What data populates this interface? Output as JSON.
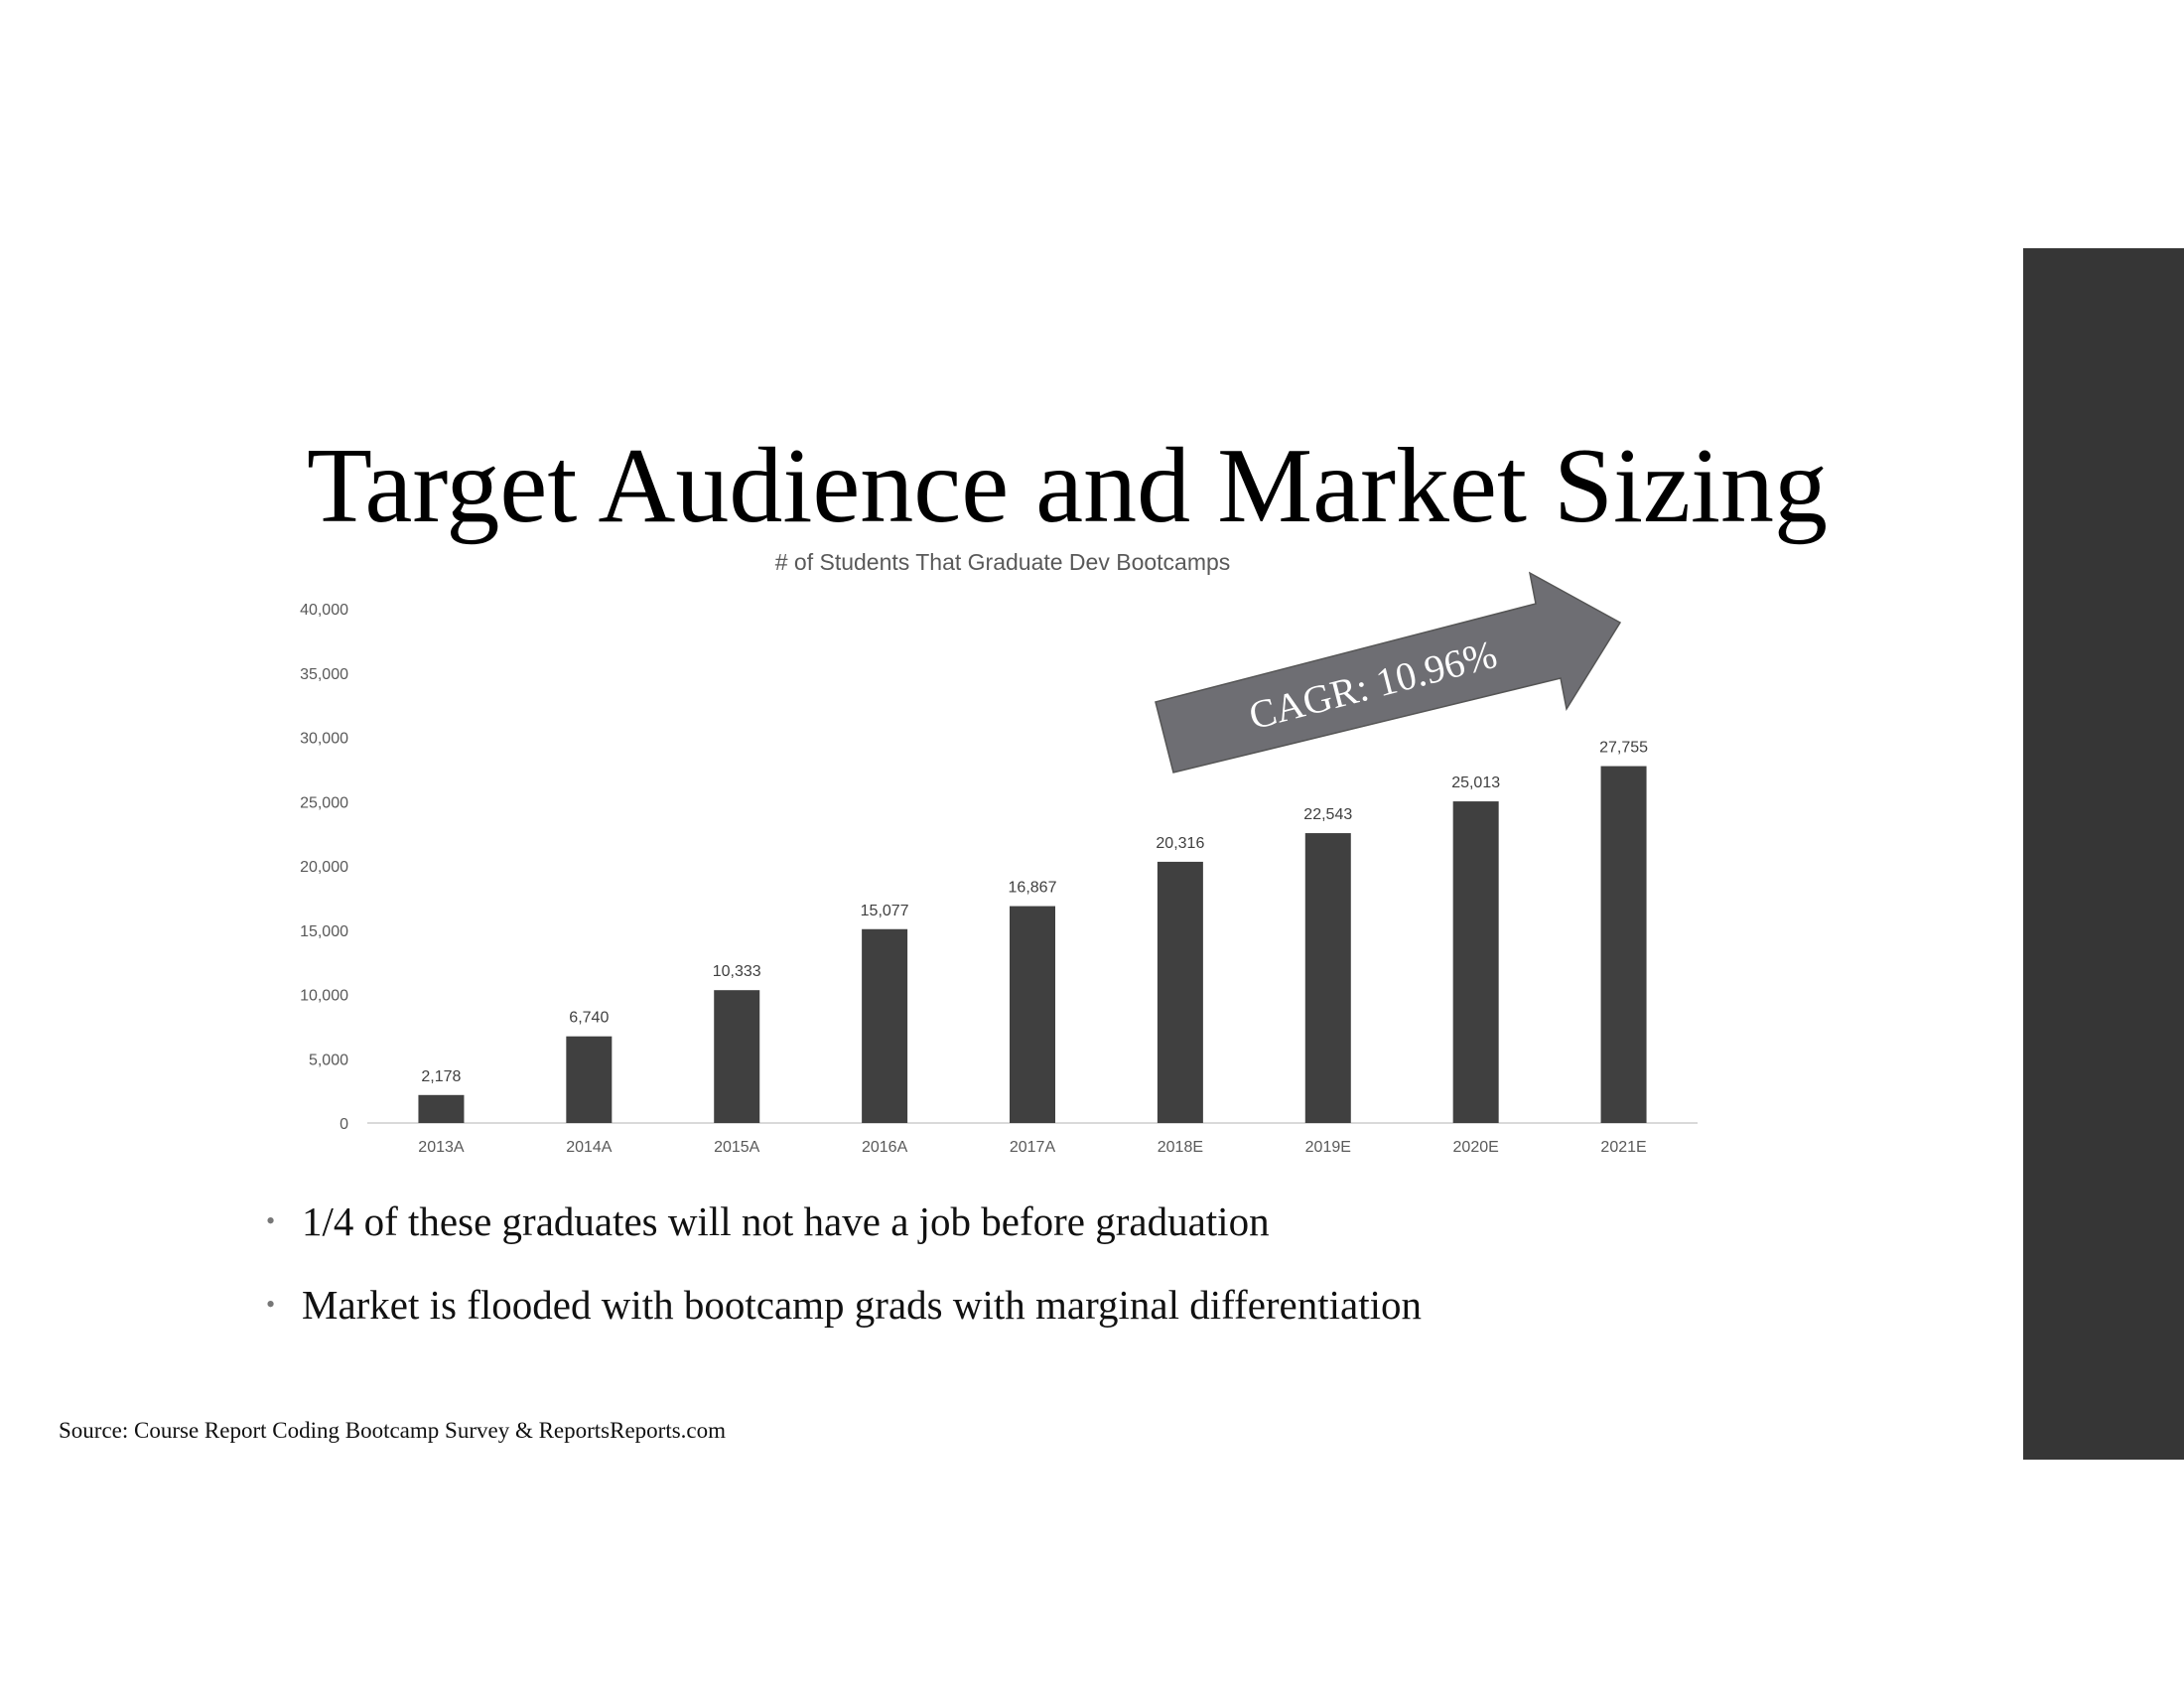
{
  "slide": {
    "title": "Target Audience and Market Sizing",
    "bullets": [
      "1/4 of these graduates will not have a job before graduation",
      "Market is flooded with bootcamp grads with marginal differentiation"
    ],
    "source": "Source: Course Report Coding Bootcamp Survey & ReportsReports.com"
  },
  "colors": {
    "bar": "#404040",
    "side_bar": "#363636",
    "arrow": "#6e6e73",
    "axis_text": "#595959"
  },
  "chart_data": {
    "type": "bar",
    "title": "# of Students That Graduate Dev Bootcamps",
    "categories": [
      "2013A",
      "2014A",
      "2015A",
      "2016A",
      "2017A",
      "2018E",
      "2019E",
      "2020E",
      "2021E"
    ],
    "values": [
      2178,
      6740,
      10333,
      15077,
      16867,
      20316,
      22543,
      25013,
      27755
    ],
    "value_labels": [
      "2,178",
      "6,740",
      "10,333",
      "15,077",
      "16,867",
      "20,316",
      "22,543",
      "25,013",
      "27,755"
    ],
    "ylim": [
      0,
      40000
    ],
    "yticks": [
      0,
      5000,
      10000,
      15000,
      20000,
      25000,
      30000,
      35000,
      40000
    ],
    "ytick_labels": [
      "0",
      "5,000",
      "10,000",
      "15,000",
      "20,000",
      "25,000",
      "30,000",
      "35,000",
      "40,000"
    ],
    "xlabel": "",
    "ylabel": "",
    "grid": false,
    "annotation": "CAGR: 10.96%"
  }
}
